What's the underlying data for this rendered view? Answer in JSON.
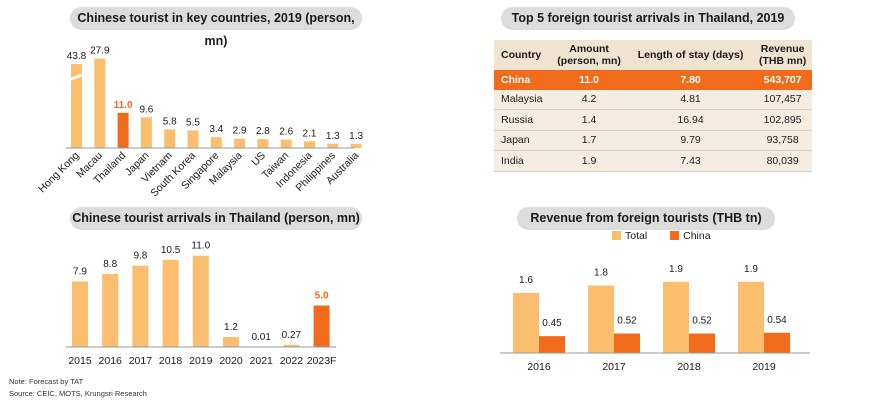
{
  "colors": {
    "light": "#fbbe6e",
    "accent": "#f26b1d",
    "pill": "#dcdcdc",
    "table_head": "#f0e3d0",
    "table_row": "#f5ede2"
  },
  "notes": {
    "note": "Note: Forecast by TAT",
    "source": "Source: CEIC, MOTS, Krungsri Research"
  },
  "chart_data": [
    {
      "type": "bar",
      "title": "Chinese tourist in key countries, 2019 (person, mn)",
      "categories": [
        "Hong Kong",
        "Macau",
        "Thailand",
        "Japan",
        "Vietnam",
        "South Korea",
        "Singapore",
        "Malaysia",
        "US",
        "Taiwan",
        "Indonesia",
        "Philippines",
        "Australia"
      ],
      "values": [
        43.8,
        27.9,
        11.0,
        9.6,
        5.8,
        5.5,
        3.4,
        2.9,
        2.8,
        2.6,
        2.1,
        1.3,
        1.3
      ],
      "value_labels": [
        "43.8",
        "27.9",
        "11.0",
        "9.6",
        "5.8",
        "5.5",
        "3.4",
        "2.9",
        "2.8",
        "2.6",
        "2.1",
        "1.3",
        "1.3"
      ],
      "highlight": "Thailand",
      "axis_break": "Hong Kong"
    },
    {
      "type": "bar",
      "title": "Chinese tourist arrivals in Thailand (person, mn)",
      "categories": [
        "2015",
        "2016",
        "2017",
        "2018",
        "2019",
        "2020",
        "2021",
        "2022",
        "2023F"
      ],
      "values": [
        7.9,
        8.8,
        9.8,
        10.5,
        11.0,
        1.2,
        0.01,
        0.27,
        5.0
      ],
      "value_labels": [
        "7.9",
        "8.8",
        "9.8",
        "10.5",
        "11.0",
        "1.2",
        "0.01",
        "0.27",
        "5.0"
      ],
      "highlight": "2023F"
    },
    {
      "type": "table",
      "title": "Top 5 foreign tourist arrivals in Thailand, 2019",
      "columns": [
        "Country",
        "Amount\n(person, mn)",
        "Length of stay (days)",
        "Revenue\n(THB mn)"
      ],
      "rows": [
        [
          "China",
          "11.0",
          "7.80",
          "543,707"
        ],
        [
          "Malaysia",
          "4.2",
          "4.81",
          "107,457"
        ],
        [
          "Russia",
          "1.4",
          "16.94",
          "102,895"
        ],
        [
          "Japan",
          "1.7",
          "9.79",
          "93,758"
        ],
        [
          "India",
          "1.9",
          "7.43",
          "80,039"
        ]
      ],
      "highlight_row": "China"
    },
    {
      "type": "bar",
      "title": "Revenue from foreign tourists (THB tn)",
      "categories": [
        "2016",
        "2017",
        "2018",
        "2019"
      ],
      "series": [
        {
          "name": "Total",
          "values": [
            1.6,
            1.8,
            1.9,
            1.9
          ],
          "labels": [
            "1.6",
            "1.8",
            "1.9",
            "1.9"
          ]
        },
        {
          "name": "China",
          "values": [
            0.45,
            0.52,
            0.52,
            0.54
          ],
          "labels": [
            "0.45",
            "0.52",
            "0.52",
            "0.54"
          ]
        }
      ],
      "legend": "top"
    }
  ]
}
